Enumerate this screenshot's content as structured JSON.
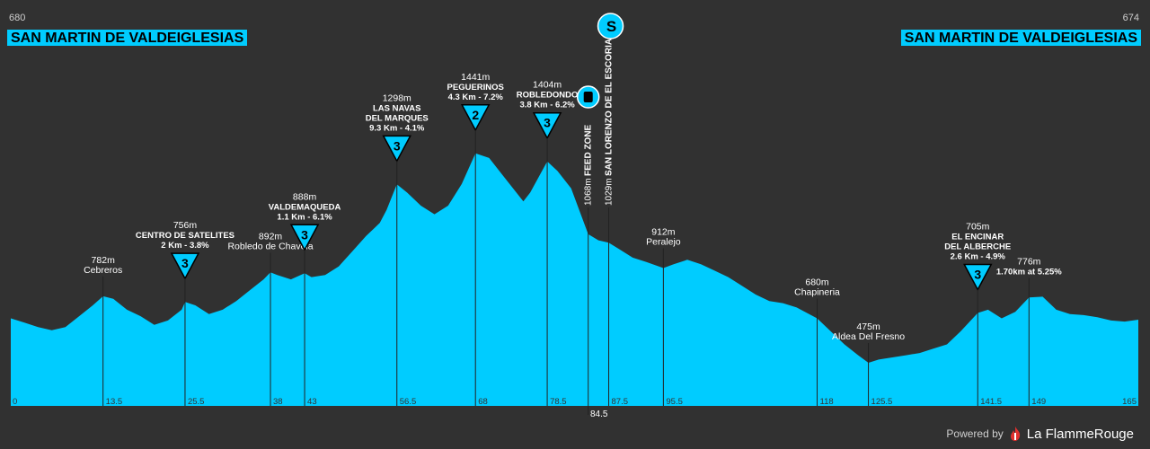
{
  "header": {
    "start_elevation": "680",
    "start_name": "SAN MARTIN DE VALDEIGLESIAS",
    "finish_elevation": "674",
    "finish_name": "SAN MARTIN DE VALDEIGLESIAS"
  },
  "footer": {
    "powered_by": "Powered by",
    "brand": "La FlammeRouge"
  },
  "colors": {
    "profile_fill": "#00ccff",
    "background": "#313131",
    "climb_marker": "#00ccff"
  },
  "profile": {
    "distance_range_km": [
      0,
      165
    ],
    "points": [
      [
        0,
        680
      ],
      [
        2,
        660
      ],
      [
        4,
        640
      ],
      [
        6,
        625
      ],
      [
        8,
        640
      ],
      [
        10,
        690
      ],
      [
        12,
        740
      ],
      [
        13.5,
        782
      ],
      [
        15,
        770
      ],
      [
        17,
        720
      ],
      [
        19,
        690
      ],
      [
        21,
        650
      ],
      [
        23,
        670
      ],
      [
        25,
        720
      ],
      [
        25.5,
        756
      ],
      [
        27,
        740
      ],
      [
        29,
        700
      ],
      [
        31,
        720
      ],
      [
        33,
        760
      ],
      [
        35,
        810
      ],
      [
        37,
        860
      ],
      [
        38,
        892
      ],
      [
        39,
        880
      ],
      [
        41,
        860
      ],
      [
        43,
        888
      ],
      [
        44,
        870
      ],
      [
        46,
        880
      ],
      [
        48,
        920
      ],
      [
        50,
        990
      ],
      [
        52,
        1060
      ],
      [
        54,
        1120
      ],
      [
        55,
        1180
      ],
      [
        56.5,
        1298
      ],
      [
        58,
        1260
      ],
      [
        60,
        1200
      ],
      [
        62,
        1160
      ],
      [
        64,
        1200
      ],
      [
        66,
        1300
      ],
      [
        68,
        1441
      ],
      [
        70,
        1420
      ],
      [
        72,
        1340
      ],
      [
        74,
        1260
      ],
      [
        75,
        1220
      ],
      [
        76,
        1260
      ],
      [
        78.5,
        1404
      ],
      [
        80,
        1360
      ],
      [
        82,
        1280
      ],
      [
        84.5,
        1068
      ],
      [
        86,
        1040
      ],
      [
        87.5,
        1029
      ],
      [
        89,
        1000
      ],
      [
        91,
        960
      ],
      [
        93,
        940
      ],
      [
        95.5,
        912
      ],
      [
        97,
        930
      ],
      [
        99,
        950
      ],
      [
        101,
        930
      ],
      [
        103,
        900
      ],
      [
        105,
        870
      ],
      [
        107,
        830
      ],
      [
        109,
        790
      ],
      [
        111,
        760
      ],
      [
        113,
        750
      ],
      [
        115,
        730
      ],
      [
        118,
        680
      ],
      [
        120,
        620
      ],
      [
        122,
        560
      ],
      [
        124,
        510
      ],
      [
        125.5,
        475
      ],
      [
        127,
        490
      ],
      [
        129,
        500
      ],
      [
        131,
        510
      ],
      [
        133,
        520
      ],
      [
        135,
        540
      ],
      [
        137,
        560
      ],
      [
        139,
        620
      ],
      [
        141.5,
        705
      ],
      [
        143,
        720
      ],
      [
        145,
        680
      ],
      [
        147,
        710
      ],
      [
        149,
        776
      ],
      [
        151,
        780
      ],
      [
        153,
        720
      ],
      [
        155,
        700
      ],
      [
        157,
        695
      ],
      [
        159,
        685
      ],
      [
        161,
        670
      ],
      [
        163,
        665
      ],
      [
        165,
        674
      ]
    ]
  },
  "points_of_interest": [
    {
      "km": 13.5,
      "elevation": 782,
      "elev_label": "782m",
      "name": "Cebreros"
    },
    {
      "km": 25.5,
      "elevation": 756,
      "elev_label": "756m",
      "name": "CENTRO DE SATELITES",
      "detail": "2 Km - 3.8%",
      "category": "3"
    },
    {
      "km": 38,
      "elevation": 892,
      "elev_label": "892m",
      "name": "Robledo de Chavela"
    },
    {
      "km": 43,
      "elevation": 888,
      "elev_label": "888m",
      "name": "VALDEMAQUEDA",
      "detail": "1.1 Km - 6.1%",
      "category": "3"
    },
    {
      "km": 56.5,
      "elevation": 1298,
      "elev_label": "1298m",
      "name": "LAS NAVAS",
      "name2": "DEL MARQUES",
      "detail": "9.3 Km - 4.1%",
      "category": "3"
    },
    {
      "km": 68,
      "elevation": 1441,
      "elev_label": "1441m",
      "name": "PEGUERINOS",
      "detail": "4.3 Km - 7.2%",
      "category": "2"
    },
    {
      "km": 78.5,
      "elevation": 1404,
      "elev_label": "1404m",
      "name": "ROBLEDONDO",
      "detail": "3.8 Km - 6.2%",
      "category": "3"
    },
    {
      "km": 84.5,
      "elevation": 1068,
      "elev_label": "1068m",
      "name": "FEED ZONE",
      "vertical": true,
      "icon": "feed-zone-icon"
    },
    {
      "km": 87.5,
      "elevation": 1029,
      "elev_label": "1029m",
      "name": "SAN LORENZO DE EL ESCORIAL",
      "vertical": true,
      "icon": "sprint-icon"
    },
    {
      "km": 95.5,
      "elevation": 912,
      "elev_label": "912m",
      "name": "Peralejo"
    },
    {
      "km": 118,
      "elevation": 680,
      "elev_label": "680m",
      "name": "Chapineria"
    },
    {
      "km": 125.5,
      "elevation": 475,
      "elev_label": "475m",
      "name": "Aldea Del Fresno"
    },
    {
      "km": 141.5,
      "elevation": 705,
      "elev_label": "705m",
      "name": "EL ENCINAR",
      "name2": "DEL ALBERCHE",
      "detail": "2.6 Km - 4.9%",
      "category": "3"
    },
    {
      "km": 149,
      "elevation": 776,
      "elev_label": "776m",
      "detail": "1.70km at 5.25%"
    }
  ],
  "km_ticks": [
    {
      "km": 0,
      "label": "0"
    },
    {
      "km": 13.5,
      "label": "13.5"
    },
    {
      "km": 25.5,
      "label": "25.5"
    },
    {
      "km": 38,
      "label": "38"
    },
    {
      "km": 43,
      "label": "43"
    },
    {
      "km": 56.5,
      "label": "56.5"
    },
    {
      "km": 68,
      "label": "68"
    },
    {
      "km": 78.5,
      "label": "78.5"
    },
    {
      "km": 84.5,
      "label": "84.5",
      "below": true
    },
    {
      "km": 87.5,
      "label": "87.5"
    },
    {
      "km": 95.5,
      "label": "95.5"
    },
    {
      "km": 118,
      "label": "118"
    },
    {
      "km": 125.5,
      "label": "125.5"
    },
    {
      "km": 141.5,
      "label": "141.5"
    },
    {
      "km": 149,
      "label": "149"
    },
    {
      "km": 165,
      "label": "165"
    }
  ]
}
